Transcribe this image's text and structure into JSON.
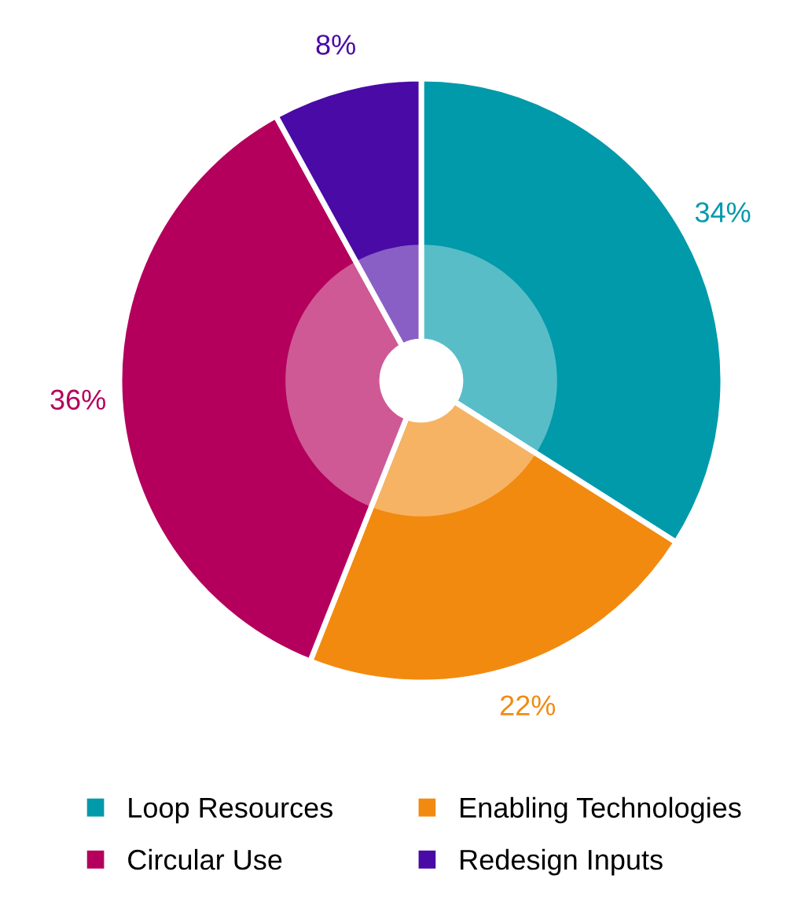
{
  "chart_data": {
    "type": "donut",
    "categories": [
      "Loop Resources",
      "Enabling Technologies",
      "Circular Use",
      "Redesign Inputs"
    ],
    "values": [
      34,
      22,
      36,
      8
    ],
    "colors": [
      "#009aab",
      "#f28a10",
      "#b4005c",
      "#4a0aa6"
    ],
    "value_labels": [
      "34%",
      "22%",
      "36%",
      "8%"
    ],
    "legend": "bottom"
  }
}
